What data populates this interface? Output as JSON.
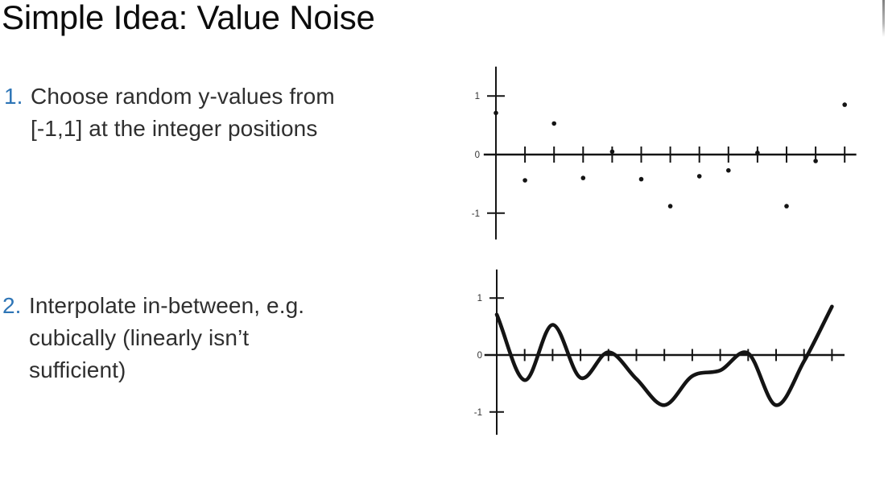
{
  "slide": {
    "title": "Simple Idea: Value Noise",
    "accent_color": "#2e75b6",
    "text_color": "#2f2f2f",
    "items": [
      {
        "number": "1.",
        "text": "Choose random y-values from [-1,1] at the integer positions",
        "lines": [
          "Choose random y-values from",
          "[-1,1] at the integer positions"
        ]
      },
      {
        "number": "2.",
        "text": "Interpolate in-between, e.g. cubically (linearly isn’t sufficient)",
        "lines": [
          "Interpolate in-between, e.g.",
          "cubically (linearly isn’t",
          "sufficient)"
        ]
      }
    ]
  },
  "chart_data": [
    {
      "type": "scatter",
      "title": "",
      "xlabel": "",
      "ylabel": "",
      "x": [
        0,
        1,
        2,
        3,
        4,
        5,
        6,
        7,
        8,
        9,
        10,
        11,
        12
      ],
      "values": [
        0.71,
        -0.44,
        0.53,
        -0.4,
        0.05,
        -0.42,
        -0.88,
        -0.37,
        -0.27,
        0.03,
        -0.88,
        -0.11,
        0.85
      ],
      "x_ticks": [
        1,
        2,
        3,
        4,
        5,
        6,
        7,
        8,
        9,
        10,
        11,
        12
      ],
      "y_ticks": [
        1,
        0,
        -1
      ],
      "y_tick_labels": [
        "1",
        "0",
        "-1"
      ],
      "xlim": [
        -0.42,
        12.4
      ],
      "ylim": [
        -1.45,
        1.5
      ],
      "grid": false,
      "legend": false,
      "marker_color": "#141414"
    },
    {
      "type": "line",
      "title": "",
      "xlabel": "",
      "ylabel": "",
      "interpolation": "cubic",
      "x": [
        0,
        1,
        2,
        3,
        4,
        5,
        6,
        7,
        8,
        9,
        10,
        11,
        12
      ],
      "values": [
        0.71,
        -0.44,
        0.53,
        -0.4,
        0.05,
        -0.42,
        -0.88,
        -0.37,
        -0.27,
        0.03,
        -0.88,
        -0.11,
        0.85
      ],
      "x_ticks": [
        1,
        2,
        3,
        4,
        5,
        6,
        7,
        8,
        9,
        10,
        11,
        12
      ],
      "y_ticks": [
        1,
        0,
        -1
      ],
      "y_tick_labels": [
        "1",
        "0",
        "-1"
      ],
      "xlim": [
        -0.44,
        12.45
      ],
      "ylim": [
        -1.4,
        1.5
      ],
      "grid": false,
      "legend": false,
      "line_color": "#141414"
    }
  ]
}
